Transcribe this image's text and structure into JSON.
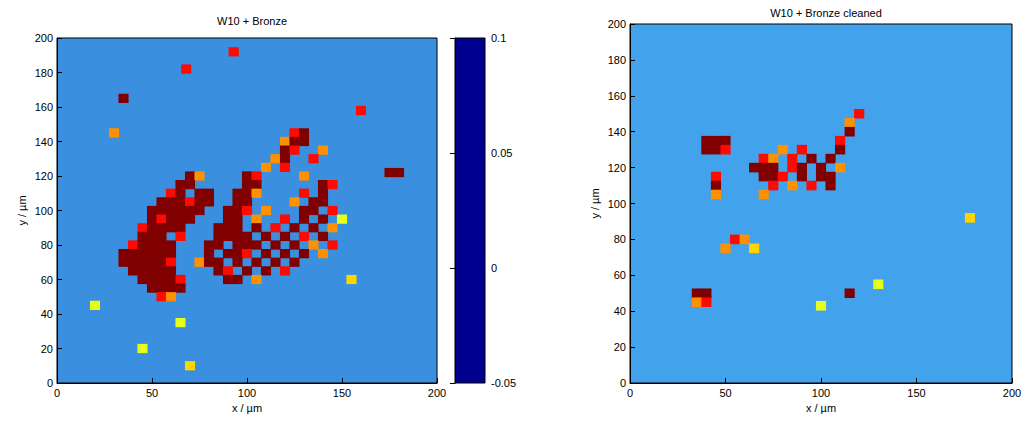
{
  "chart_data": [
    {
      "type": "heatmap",
      "title": "W10 + Bronze",
      "xlabel": "x / µm",
      "ylabel": "y / µm",
      "xlim": [
        0,
        200
      ],
      "ylim": [
        0,
        200
      ],
      "xticks": [
        0,
        50,
        100,
        150,
        200
      ],
      "yticks": [
        0,
        20,
        40,
        60,
        80,
        100,
        120,
        140,
        160,
        180,
        200
      ],
      "marker": "square",
      "clim": [
        -0.05,
        0.1
      ],
      "cticks": [
        -0.05,
        0,
        0.05,
        0.1
      ],
      "cells": [
        [
          125,
          145,
          0.08
        ],
        [
          130,
          145,
          0.1
        ],
        [
          120,
          140,
          0.06
        ],
        [
          125,
          140,
          0.1
        ],
        [
          130,
          140,
          0.1
        ],
        [
          120,
          135,
          0.1
        ],
        [
          125,
          135,
          0.08
        ],
        [
          140,
          135,
          0.06
        ],
        [
          115,
          130,
          0.06
        ],
        [
          120,
          130,
          0.1
        ],
        [
          135,
          130,
          0.08
        ],
        [
          110,
          125,
          0.06
        ],
        [
          120,
          125,
          0.08
        ],
        [
          70,
          120,
          0.1
        ],
        [
          75,
          120,
          0.06
        ],
        [
          100,
          120,
          0.1
        ],
        [
          105,
          120,
          0.08
        ],
        [
          130,
          120,
          0.06
        ],
        [
          175,
          122,
          0.1
        ],
        [
          180,
          122,
          0.1
        ],
        [
          65,
          115,
          0.1
        ],
        [
          70,
          115,
          0.1
        ],
        [
          100,
          115,
          0.1
        ],
        [
          105,
          115,
          0.1
        ],
        [
          140,
          115,
          0.1
        ],
        [
          145,
          115,
          0.08
        ],
        [
          60,
          110,
          0.08
        ],
        [
          65,
          110,
          0.1
        ],
        [
          75,
          110,
          0.1
        ],
        [
          80,
          110,
          0.1
        ],
        [
          95,
          110,
          0.1
        ],
        [
          100,
          110,
          0.1
        ],
        [
          105,
          110,
          0.06
        ],
        [
          130,
          110,
          0.08
        ],
        [
          140,
          110,
          0.1
        ],
        [
          55,
          105,
          0.1
        ],
        [
          60,
          105,
          0.1
        ],
        [
          65,
          105,
          0.1
        ],
        [
          70,
          105,
          0.08
        ],
        [
          75,
          105,
          0.1
        ],
        [
          80,
          105,
          0.1
        ],
        [
          95,
          105,
          0.1
        ],
        [
          100,
          105,
          0.1
        ],
        [
          125,
          105,
          0.06
        ],
        [
          135,
          105,
          0.1
        ],
        [
          140,
          105,
          0.1
        ],
        [
          50,
          100,
          0.1
        ],
        [
          55,
          100,
          0.1
        ],
        [
          60,
          100,
          0.1
        ],
        [
          65,
          100,
          0.1
        ],
        [
          70,
          100,
          0.1
        ],
        [
          75,
          100,
          0.1
        ],
        [
          90,
          100,
          0.1
        ],
        [
          95,
          100,
          0.1
        ],
        [
          100,
          100,
          0.08
        ],
        [
          110,
          100,
          0.06
        ],
        [
          130,
          100,
          0.1
        ],
        [
          135,
          100,
          0.1
        ],
        [
          145,
          100,
          0.08
        ],
        [
          50,
          95,
          0.1
        ],
        [
          55,
          95,
          0.08
        ],
        [
          60,
          95,
          0.1
        ],
        [
          65,
          95,
          0.1
        ],
        [
          70,
          95,
          0.1
        ],
        [
          90,
          95,
          0.1
        ],
        [
          95,
          95,
          0.1
        ],
        [
          105,
          95,
          0.06
        ],
        [
          120,
          95,
          0.08
        ],
        [
          130,
          95,
          0.1
        ],
        [
          140,
          95,
          0.1
        ],
        [
          45,
          90,
          0.08
        ],
        [
          50,
          90,
          0.1
        ],
        [
          55,
          90,
          0.1
        ],
        [
          60,
          90,
          0.1
        ],
        [
          65,
          90,
          0.1
        ],
        [
          85,
          90,
          0.1
        ],
        [
          90,
          90,
          0.1
        ],
        [
          95,
          90,
          0.1
        ],
        [
          105,
          90,
          0.1
        ],
        [
          115,
          90,
          0.08
        ],
        [
          125,
          90,
          0.1
        ],
        [
          135,
          90,
          0.1
        ],
        [
          145,
          90,
          0.06
        ],
        [
          45,
          85,
          0.1
        ],
        [
          50,
          85,
          0.1
        ],
        [
          55,
          85,
          0.1
        ],
        [
          65,
          85,
          0.08
        ],
        [
          85,
          85,
          0.1
        ],
        [
          90,
          85,
          0.1
        ],
        [
          95,
          85,
          0.1
        ],
        [
          100,
          85,
          0.1
        ],
        [
          110,
          85,
          0.1
        ],
        [
          120,
          85,
          0.1
        ],
        [
          130,
          85,
          0.08
        ],
        [
          140,
          85,
          0.1
        ],
        [
          40,
          80,
          0.08
        ],
        [
          45,
          80,
          0.1
        ],
        [
          50,
          80,
          0.1
        ],
        [
          55,
          80,
          0.1
        ],
        [
          60,
          80,
          0.1
        ],
        [
          80,
          80,
          0.1
        ],
        [
          85,
          80,
          0.1
        ],
        [
          95,
          80,
          0.1
        ],
        [
          100,
          80,
          0.1
        ],
        [
          105,
          80,
          0.1
        ],
        [
          115,
          80,
          0.1
        ],
        [
          125,
          80,
          0.1
        ],
        [
          135,
          80,
          0.06
        ],
        [
          145,
          80,
          0.08
        ],
        [
          35,
          75,
          0.1
        ],
        [
          40,
          75,
          0.1
        ],
        [
          45,
          75,
          0.1
        ],
        [
          50,
          75,
          0.1
        ],
        [
          55,
          75,
          0.1
        ],
        [
          60,
          75,
          0.1
        ],
        [
          80,
          75,
          0.1
        ],
        [
          90,
          75,
          0.1
        ],
        [
          95,
          75,
          0.1
        ],
        [
          100,
          75,
          0.08
        ],
        [
          110,
          75,
          0.1
        ],
        [
          120,
          75,
          0.1
        ],
        [
          130,
          75,
          0.1
        ],
        [
          140,
          75,
          0.06
        ],
        [
          35,
          70,
          0.1
        ],
        [
          40,
          70,
          0.1
        ],
        [
          45,
          70,
          0.1
        ],
        [
          50,
          70,
          0.1
        ],
        [
          55,
          70,
          0.1
        ],
        [
          60,
          70,
          0.08
        ],
        [
          75,
          70,
          0.06
        ],
        [
          80,
          70,
          0.1
        ],
        [
          85,
          70,
          0.1
        ],
        [
          95,
          70,
          0.1
        ],
        [
          105,
          70,
          0.1
        ],
        [
          115,
          70,
          0.1
        ],
        [
          125,
          70,
          0.1
        ],
        [
          40,
          65,
          0.1
        ],
        [
          45,
          65,
          0.1
        ],
        [
          50,
          65,
          0.1
        ],
        [
          55,
          65,
          0.1
        ],
        [
          60,
          65,
          0.1
        ],
        [
          85,
          65,
          0.1
        ],
        [
          90,
          65,
          0.08
        ],
        [
          100,
          65,
          0.1
        ],
        [
          110,
          65,
          0.1
        ],
        [
          120,
          65,
          0.08
        ],
        [
          45,
          60,
          0.1
        ],
        [
          50,
          60,
          0.1
        ],
        [
          55,
          60,
          0.1
        ],
        [
          60,
          60,
          0.1
        ],
        [
          65,
          60,
          0.08
        ],
        [
          90,
          60,
          0.1
        ],
        [
          95,
          60,
          0.1
        ],
        [
          105,
          60,
          0.06
        ],
        [
          50,
          55,
          0.1
        ],
        [
          55,
          55,
          0.1
        ],
        [
          60,
          55,
          0.1
        ],
        [
          65,
          55,
          0.1
        ],
        [
          55,
          50,
          0.08
        ],
        [
          60,
          50,
          0.06
        ],
        [
          30,
          145,
          0.06
        ],
        [
          35,
          165,
          0.1
        ],
        [
          68,
          182,
          0.08
        ],
        [
          93,
          192,
          0.08
        ],
        [
          160,
          158,
          0.08
        ],
        [
          45,
          20,
          0.04
        ],
        [
          70,
          10,
          0.05
        ],
        [
          20,
          45,
          0.04
        ],
        [
          65,
          35,
          0.04
        ],
        [
          155,
          60,
          0.05
        ],
        [
          150,
          95,
          0.04
        ]
      ]
    },
    {
      "type": "heatmap",
      "title": "W10 + Bronze cleaned",
      "xlabel": "x / µm",
      "ylabel": "y / µm",
      "xlim": [
        0,
        200
      ],
      "ylim": [
        0,
        200
      ],
      "xticks": [
        0,
        50,
        100,
        150,
        200
      ],
      "yticks": [
        0,
        20,
        40,
        60,
        80,
        100,
        120,
        140,
        160,
        180,
        200
      ],
      "marker": "square",
      "clim": [
        -0.05,
        0.1
      ],
      "cells": [
        [
          120,
          150,
          0.08
        ],
        [
          115,
          145,
          0.06
        ],
        [
          115,
          140,
          0.1
        ],
        [
          40,
          135,
          0.1
        ],
        [
          45,
          135,
          0.1
        ],
        [
          50,
          135,
          0.1
        ],
        [
          110,
          135,
          0.08
        ],
        [
          40,
          130,
          0.1
        ],
        [
          45,
          130,
          0.1
        ],
        [
          50,
          130,
          0.08
        ],
        [
          80,
          130,
          0.06
        ],
        [
          90,
          130,
          0.08
        ],
        [
          110,
          130,
          0.1
        ],
        [
          70,
          125,
          0.08
        ],
        [
          75,
          125,
          0.06
        ],
        [
          85,
          125,
          0.08
        ],
        [
          95,
          125,
          0.1
        ],
        [
          105,
          125,
          0.1
        ],
        [
          65,
          120,
          0.1
        ],
        [
          70,
          120,
          0.1
        ],
        [
          75,
          120,
          0.1
        ],
        [
          85,
          120,
          0.08
        ],
        [
          90,
          120,
          0.1
        ],
        [
          100,
          120,
          0.1
        ],
        [
          110,
          120,
          0.06
        ],
        [
          45,
          115,
          0.08
        ],
        [
          70,
          115,
          0.1
        ],
        [
          75,
          115,
          0.1
        ],
        [
          80,
          115,
          0.08
        ],
        [
          90,
          115,
          0.1
        ],
        [
          100,
          115,
          0.1
        ],
        [
          105,
          115,
          0.1
        ],
        [
          45,
          110,
          0.1
        ],
        [
          75,
          110,
          0.08
        ],
        [
          85,
          110,
          0.06
        ],
        [
          95,
          110,
          0.08
        ],
        [
          105,
          110,
          0.1
        ],
        [
          45,
          105,
          0.06
        ],
        [
          70,
          105,
          0.06
        ],
        [
          55,
          80,
          0.08
        ],
        [
          60,
          80,
          0.06
        ],
        [
          50,
          75,
          0.06
        ],
        [
          65,
          75,
          0.05
        ],
        [
          35,
          50,
          0.1
        ],
        [
          40,
          50,
          0.1
        ],
        [
          115,
          50,
          0.1
        ],
        [
          35,
          45,
          0.06
        ],
        [
          40,
          45,
          0.08
        ],
        [
          130,
          55,
          0.04
        ],
        [
          178,
          92,
          0.05
        ],
        [
          100,
          43,
          0.04
        ]
      ]
    }
  ]
}
